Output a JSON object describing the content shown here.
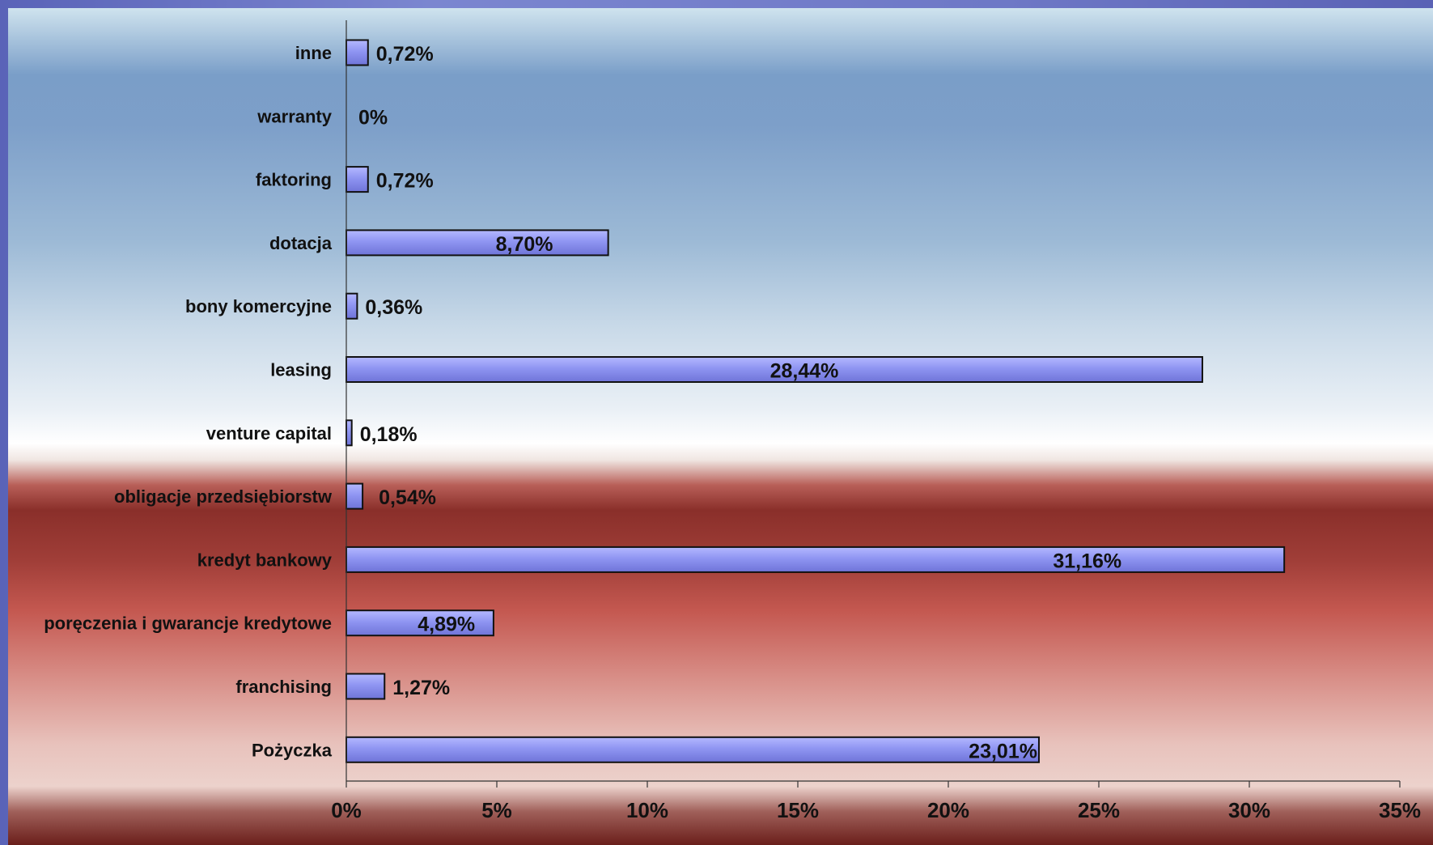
{
  "chart_data": {
    "type": "bar",
    "orientation": "horizontal",
    "categories": [
      "inne",
      "warranty",
      "faktoring",
      "dotacja",
      "bony komercyjne",
      "leasing",
      "venture capital",
      "obligacje przedsiębiorstw",
      "kredyt bankowy",
      "poręczenia i gwarancje kredytowe",
      "franchising",
      "Pożyczka"
    ],
    "values": [
      0.72,
      0,
      0.72,
      8.7,
      0.36,
      28.44,
      0.18,
      0.54,
      31.16,
      4.89,
      1.27,
      23.01
    ],
    "data_labels": [
      "0,72%",
      "0%",
      "0,72%",
      "8,70%",
      "0,36%",
      "28,44%",
      "0,18%",
      "0,54%",
      "31,16%",
      "4,89%",
      "1,27%",
      "23,01%"
    ],
    "x_ticks": [
      0,
      5,
      10,
      15,
      20,
      25,
      30,
      35
    ],
    "x_tick_labels": [
      "0%",
      "5%",
      "10%",
      "15%",
      "20%",
      "25%",
      "30%",
      "35%"
    ],
    "xlim": [
      0,
      35
    ],
    "bar_color": "#8f95f2",
    "grid": false,
    "legend": false
  }
}
